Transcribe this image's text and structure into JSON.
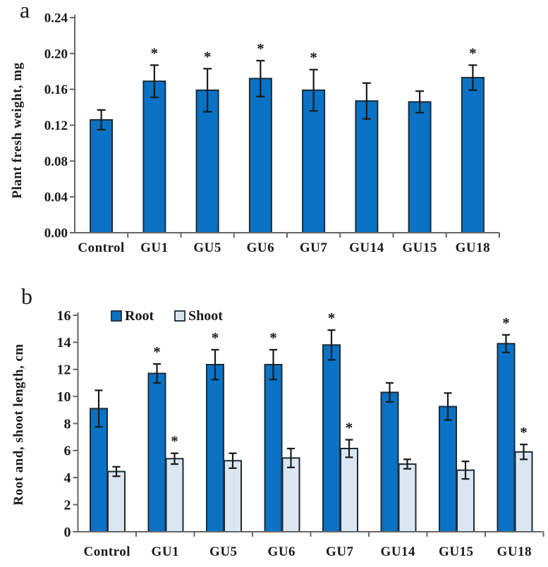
{
  "colors": {
    "root_fill": "#0A72C4",
    "shoot_fill": "#DCE6F1",
    "bar_border": "#1c2b36",
    "error_bar": "#1a1a1a",
    "axis": "#666666",
    "text": "#1a1a1a"
  },
  "chart_data": [
    {
      "type": "bar",
      "panel_letter": "a",
      "ylabel": "Plant fresh weight, mg",
      "ylim": [
        0,
        0.24
      ],
      "ytick_step": 0.04,
      "ytick_decimals": 2,
      "grid": "off",
      "categories": [
        "Control",
        "GU1",
        "GU5",
        "GU6",
        "GU7",
        "GU14",
        "GU15",
        "GU18"
      ],
      "series": [
        {
          "name": "Plant fresh weight",
          "values": [
            0.126,
            0.169,
            0.159,
            0.172,
            0.159,
            0.147,
            0.146,
            0.173
          ],
          "errors": [
            0.011,
            0.018,
            0.024,
            0.02,
            0.023,
            0.02,
            0.012,
            0.014
          ],
          "significant": [
            false,
            true,
            true,
            true,
            true,
            false,
            false,
            true
          ],
          "significance_marker": "*"
        }
      ]
    },
    {
      "type": "bar",
      "panel_letter": "b",
      "ylabel": "Root and, shoot length, cm",
      "ylim": [
        0,
        16
      ],
      "ytick_step": 2,
      "ytick_decimals": 0,
      "grid": "off",
      "legend_position": "top-inside",
      "categories": [
        "Control",
        "GU1",
        "GU5",
        "GU6",
        "GU7",
        "GU14",
        "GU15",
        "GU18"
      ],
      "series": [
        {
          "name": "Root",
          "values": [
            9.1,
            11.7,
            12.35,
            12.35,
            13.8,
            10.3,
            9.25,
            13.9
          ],
          "errors": [
            1.35,
            0.7,
            1.1,
            1.1,
            1.1,
            0.7,
            1.0,
            0.65
          ],
          "significant": [
            false,
            true,
            true,
            true,
            true,
            false,
            false,
            true
          ],
          "significance_marker": "*"
        },
        {
          "name": "Shoot",
          "values": [
            4.45,
            5.4,
            5.25,
            5.45,
            6.15,
            5.0,
            4.55,
            5.9
          ],
          "errors": [
            0.35,
            0.4,
            0.55,
            0.7,
            0.65,
            0.35,
            0.65,
            0.55
          ],
          "significant": [
            false,
            true,
            false,
            false,
            true,
            false,
            false,
            true
          ],
          "significance_marker": "*"
        }
      ]
    }
  ]
}
